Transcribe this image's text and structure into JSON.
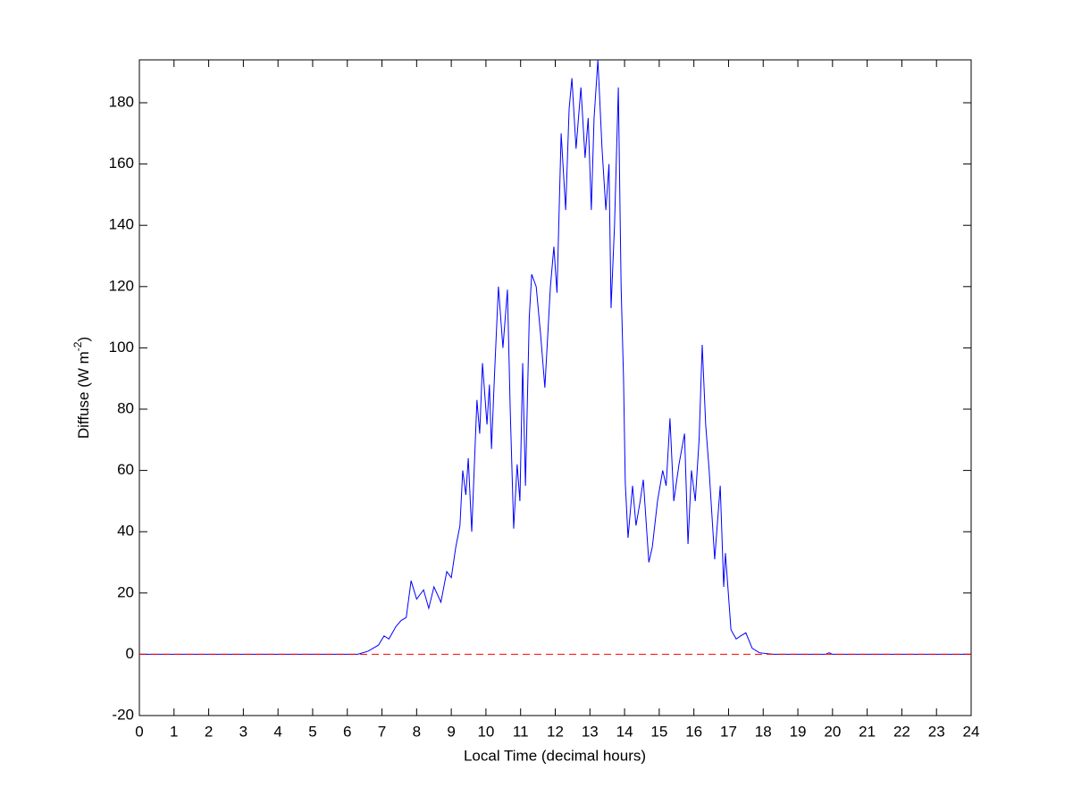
{
  "chart_data": {
    "type": "line",
    "xlabel": "Local Time (decimal hours)",
    "ylabel": {
      "text": "Diffuse (W m",
      "superscript": "-2",
      "suffix": ")"
    },
    "xlim": [
      0,
      24
    ],
    "ylim": [
      -20,
      194
    ],
    "xticks": [
      0,
      1,
      2,
      3,
      4,
      5,
      6,
      7,
      8,
      9,
      10,
      11,
      12,
      13,
      14,
      15,
      16,
      17,
      18,
      19,
      20,
      21,
      22,
      23,
      24
    ],
    "yticks": [
      -20,
      0,
      20,
      40,
      60,
      80,
      100,
      120,
      140,
      160,
      180
    ],
    "grid": false,
    "series": [
      {
        "color": "#0000ff",
        "linestyle": "solid",
        "x": [
          0,
          6.0,
          6.3,
          6.6,
          6.9,
          7.06,
          7.2,
          7.4,
          7.55,
          7.7,
          7.84,
          8.0,
          8.2,
          8.35,
          8.5,
          8.7,
          8.87,
          9.0,
          9.13,
          9.25,
          9.33,
          9.42,
          9.49,
          9.59,
          9.74,
          9.82,
          9.9,
          10.03,
          10.1,
          10.16,
          10.25,
          10.36,
          10.49,
          10.62,
          10.7,
          10.8,
          10.9,
          10.98,
          11.06,
          11.14,
          11.25,
          11.32,
          11.45,
          11.58,
          11.7,
          11.86,
          11.96,
          12.05,
          12.17,
          12.3,
          12.4,
          12.48,
          12.6,
          12.74,
          12.86,
          12.95,
          13.04,
          13.12,
          13.23,
          13.35,
          13.46,
          13.55,
          13.61,
          13.71,
          13.82,
          13.9,
          13.97,
          14.02,
          14.1,
          14.23,
          14.33,
          14.45,
          14.54,
          14.7,
          14.8,
          14.95,
          15.1,
          15.2,
          15.31,
          15.42,
          15.57,
          15.73,
          15.83,
          15.93,
          16.04,
          16.15,
          16.24,
          16.34,
          16.44,
          16.6,
          16.76,
          16.86,
          16.91,
          17.07,
          17.22,
          17.35,
          17.5,
          17.68,
          17.89,
          18.28,
          19.8,
          19.9,
          20.0,
          24
        ],
        "values": [
          0,
          0,
          0,
          1,
          3,
          6,
          5,
          9,
          11,
          12,
          24,
          18,
          21,
          15,
          22,
          17,
          27,
          25,
          35,
          42,
          60,
          52,
          64,
          40,
          83,
          72,
          95,
          75,
          88,
          67,
          92,
          120,
          100,
          119,
          80,
          41,
          62,
          50,
          95,
          55,
          110,
          124,
          120,
          104,
          87,
          120,
          133,
          118,
          170,
          145,
          178,
          188,
          165,
          185,
          162,
          175,
          145,
          175,
          194,
          165,
          145,
          160,
          113,
          140,
          185,
          120,
          90,
          56,
          38,
          55,
          42,
          50,
          57,
          30,
          35,
          50,
          60,
          55,
          77,
          50,
          62,
          72,
          36,
          60,
          50,
          70,
          101,
          75,
          60,
          31,
          55,
          22,
          33,
          8,
          5,
          6,
          7,
          2,
          0.5,
          0,
          0,
          0.5,
          0,
          0
        ]
      },
      {
        "color": "#ff0000",
        "linestyle": "dashed",
        "x": [
          0,
          24
        ],
        "values": [
          0,
          0
        ]
      }
    ]
  }
}
